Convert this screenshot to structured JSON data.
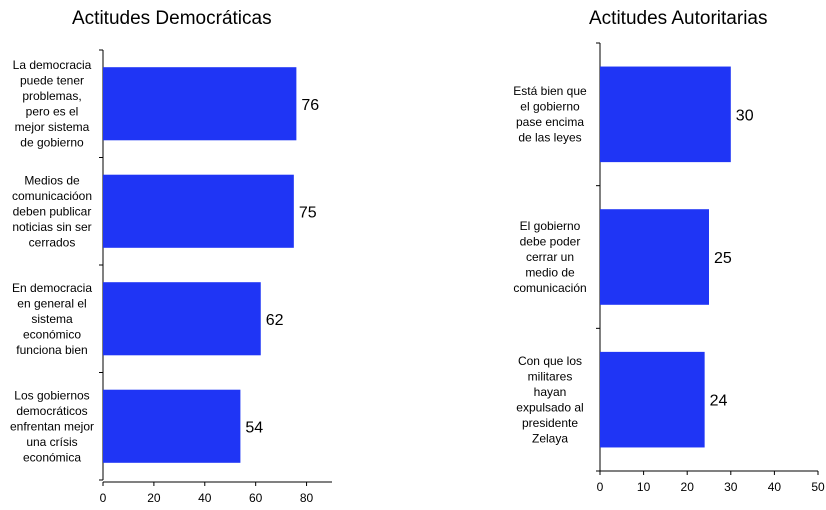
{
  "chart_data": [
    {
      "type": "bar",
      "orientation": "horizontal",
      "title": "Actitudes Democráticas",
      "categories": [
        "La democracia puede tener problemas, pero es el mejor sistema de gobierno",
        "Medios de comunicacióon deben publicar noticias sin ser cerrados",
        "En democracia en general el sistema económico funciona bien",
        "Los gobiernos democráticos enfrentan mejor una crísis económica"
      ],
      "category_lines": [
        [
          "La democracia",
          "puede tener",
          "problemas,",
          "pero es el",
          "mejor sistema",
          "de gobierno"
        ],
        [
          "Medios de",
          "comunicacióon",
          "deben publicar",
          "noticias sin ser",
          "cerrados"
        ],
        [
          "En democracia",
          "en general el",
          "sistema",
          "económico",
          "funciona bien"
        ],
        [
          "Los gobiernos",
          "democráticos",
          "enfrentan mejor",
          "una crísis",
          "económica"
        ]
      ],
      "values": [
        76,
        75,
        62,
        54
      ],
      "xlim": [
        0,
        90
      ],
      "xticks": [
        0,
        20,
        40,
        60,
        80
      ],
      "bar_color": "#1f35f5",
      "grid": false,
      "legend": "none"
    },
    {
      "type": "bar",
      "orientation": "horizontal",
      "title": "Actitudes Autoritarias",
      "categories": [
        "Está bien que el gobierno pase encima de las leyes",
        "El gobierno debe poder cerrar un medio de comunicación",
        "Con que los militares hayan expulsado al presidente Zelaya"
      ],
      "category_lines": [
        [
          "Está bien que",
          "el gobierno",
          "pase encima",
          "de las leyes"
        ],
        [
          "El gobierno",
          "debe poder",
          "cerrar un",
          "medio de",
          "comunicación"
        ],
        [
          "Con que los",
          "militares",
          "hayan",
          "expulsado al",
          "presidente",
          "Zelaya"
        ]
      ],
      "values": [
        30,
        25,
        24
      ],
      "xlim": [
        0,
        50
      ],
      "xticks": [
        0,
        10,
        20,
        30,
        40,
        50
      ],
      "bar_color": "#1f35f5",
      "grid": false,
      "legend": "none"
    }
  ]
}
